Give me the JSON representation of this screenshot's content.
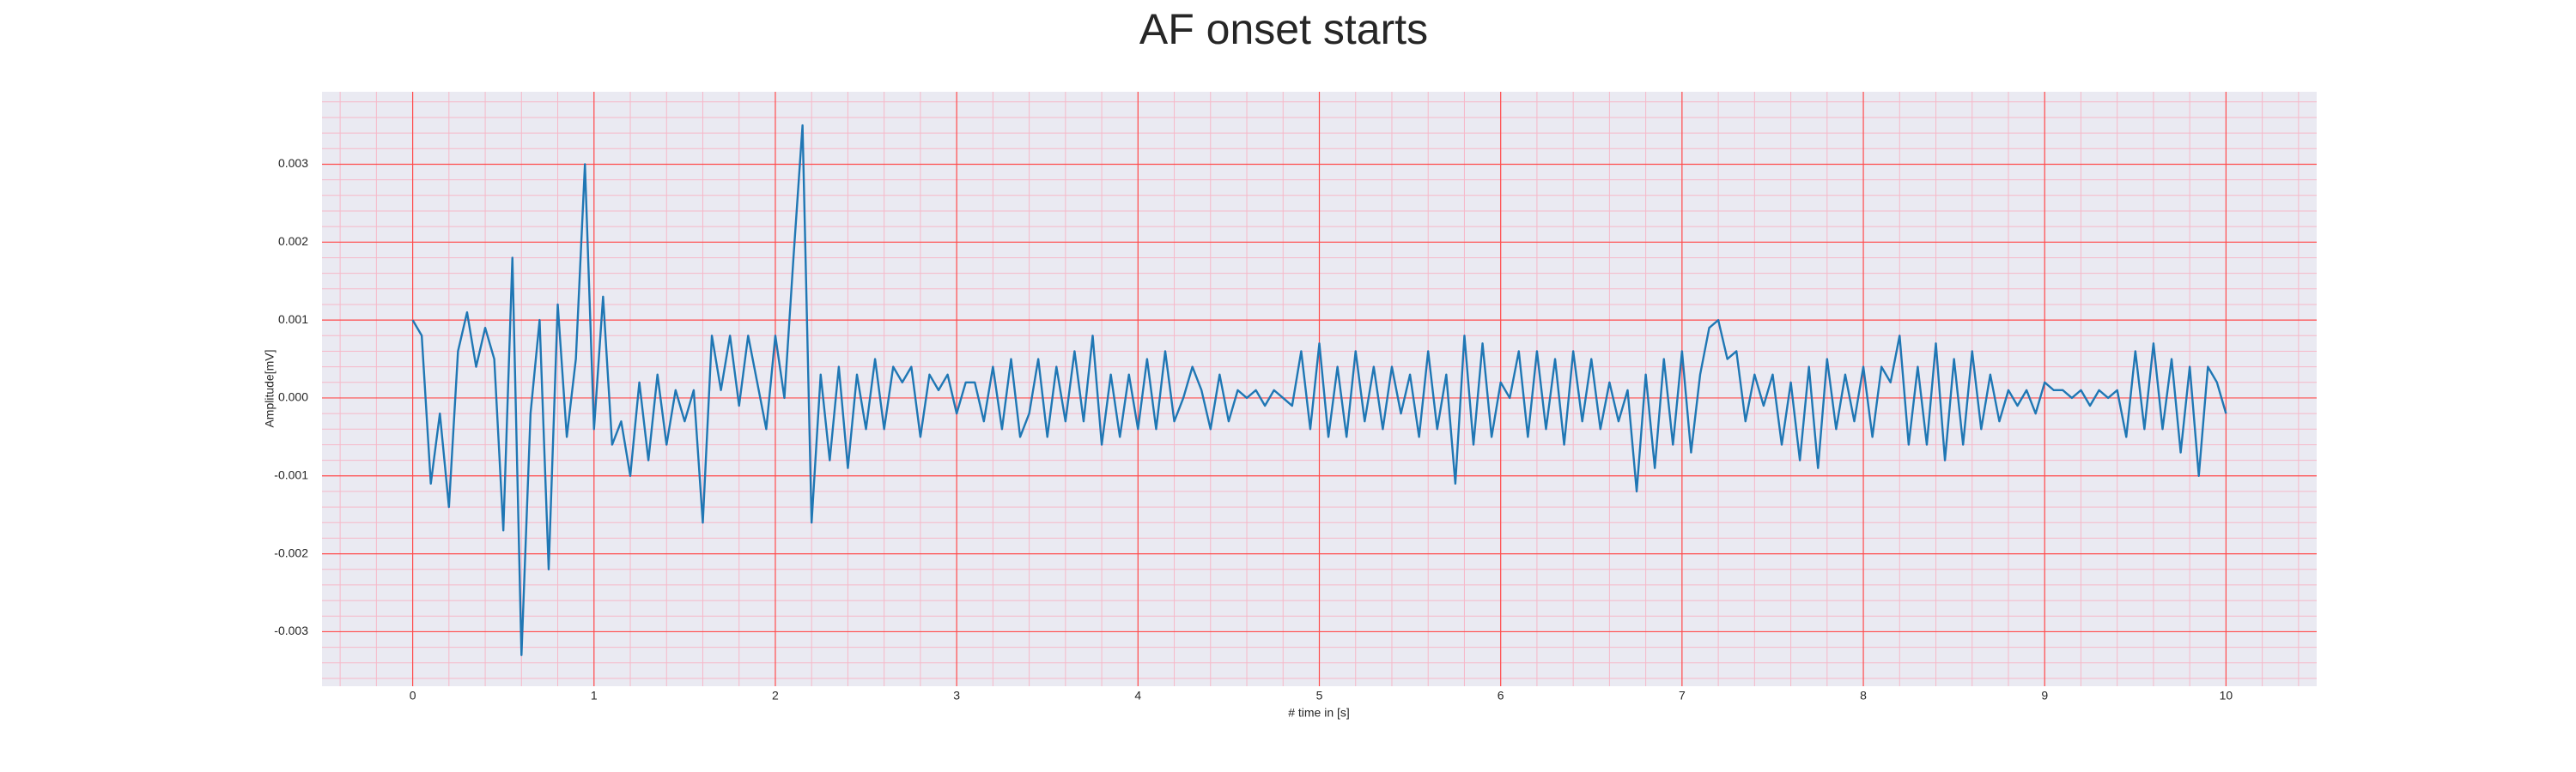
{
  "chart_data": {
    "type": "line",
    "title": "AF onset starts",
    "xlabel": "# time in [s]",
    "ylabel": "Amplitude[mV]",
    "color": "#1f77b4",
    "grid": true,
    "grid_color": "#ff4d4d",
    "minor_grid": true,
    "minor_grid_color": "#f6b8c8",
    "background": "#eaeaf2",
    "xlim": [
      -0.5,
      10.5
    ],
    "xticks": [
      0,
      1,
      2,
      3,
      4,
      5,
      6,
      7,
      8,
      9,
      10
    ],
    "ylim": [
      -0.0037,
      0.00393
    ],
    "yticks": [
      -0.003,
      -0.002,
      -0.001,
      {
        "value": 0,
        "label": "0.000"
      },
      0.001,
      0.002,
      0.003
    ],
    "x": [
      0,
      0.05,
      0.1,
      0.15,
      0.2,
      0.25,
      0.3,
      0.35,
      0.4,
      0.45,
      0.5,
      0.55,
      0.6,
      0.65,
      0.7,
      0.75,
      0.8,
      0.85,
      0.9,
      0.95,
      1,
      1.05,
      1.1,
      1.15,
      1.2,
      1.25,
      1.3,
      1.35,
      1.4,
      1.45,
      1.5,
      1.55,
      1.6,
      1.65,
      1.7,
      1.75,
      1.8,
      1.85,
      1.9,
      1.95,
      2,
      2.05,
      2.1,
      2.15,
      2.2,
      2.25,
      2.3,
      2.35,
      2.4,
      2.45,
      2.5,
      2.55,
      2.6,
      2.65,
      2.7,
      2.75,
      2.8,
      2.85,
      2.9,
      2.95,
      3,
      3.05,
      3.1,
      3.15,
      3.2,
      3.25,
      3.3,
      3.35,
      3.4,
      3.45,
      3.5,
      3.55,
      3.6,
      3.65,
      3.7,
      3.75,
      3.8,
      3.85,
      3.9,
      3.95,
      4,
      4.05,
      4.1,
      4.15,
      4.2,
      4.25,
      4.3,
      4.35,
      4.4,
      4.45,
      4.5,
      4.55,
      4.6,
      4.65,
      4.7,
      4.75,
      4.8,
      4.85,
      4.9,
      4.95,
      5,
      5.05,
      5.1,
      5.15,
      5.2,
      5.25,
      5.3,
      5.35,
      5.4,
      5.45,
      5.5,
      5.55,
      5.6,
      5.65,
      5.7,
      5.75,
      5.8,
      5.85,
      5.9,
      5.95,
      6,
      6.05,
      6.1,
      6.15,
      6.2,
      6.25,
      6.3,
      6.35,
      6.4,
      6.45,
      6.5,
      6.55,
      6.6,
      6.65,
      6.7,
      6.75,
      6.8,
      6.85,
      6.9,
      6.95,
      7,
      7.05,
      7.1,
      7.15,
      7.2,
      7.25,
      7.3,
      7.35,
      7.4,
      7.45,
      7.5,
      7.55,
      7.6,
      7.65,
      7.7,
      7.75,
      7.8,
      7.85,
      7.9,
      7.95,
      8,
      8.05,
      8.1,
      8.15,
      8.2,
      8.25,
      8.3,
      8.35,
      8.4,
      8.45,
      8.5,
      8.55,
      8.6,
      8.65,
      8.7,
      8.75,
      8.8,
      8.85,
      8.9,
      8.95,
      9,
      9.05,
      9.1,
      9.15,
      9.2,
      9.25,
      9.3,
      9.35,
      9.4,
      9.45,
      9.5,
      9.55,
      9.6,
      9.65,
      9.7,
      9.75,
      9.8,
      9.85,
      9.9,
      9.95,
      10
    ],
    "values": [
      0.001,
      0.0008,
      -0.0011,
      -0.0002,
      -0.0014,
      0.0006,
      0.0011,
      0.0004,
      0.0009,
      0.0005,
      -0.0017,
      0.0018,
      -0.0033,
      -0.0002,
      0.001,
      -0.0022,
      0.0012,
      -0.0005,
      0.0005,
      0.003,
      -0.0004,
      0.0013,
      -0.0006,
      -0.0003,
      -0.001,
      0.0002,
      -0.0008,
      0.0003,
      -0.0006,
      0.0001,
      -0.0003,
      0.0001,
      -0.0016,
      0.0008,
      0.0001,
      0.0008,
      -0.0001,
      0.0008,
      0.0002,
      -0.0004,
      0.0008,
      0,
      0.0018,
      0.0035,
      -0.0016,
      0.0003,
      -0.0008,
      0.0004,
      -0.0009,
      0.0003,
      -0.0004,
      0.0005,
      -0.0004,
      0.0004,
      0.0002,
      0.0004,
      -0.0005,
      0.0003,
      0.0001,
      0.0003,
      -0.0002,
      0.0002,
      0.0002,
      -0.0003,
      0.0004,
      -0.0004,
      0.0005,
      -0.0005,
      -0.0002,
      0.0005,
      -0.0005,
      0.0004,
      -0.0003,
      0.0006,
      -0.0003,
      0.0008,
      -0.0006,
      0.0003,
      -0.0005,
      0.0003,
      -0.0004,
      0.0005,
      -0.0004,
      0.0006,
      -0.0003,
      0,
      0.0004,
      0.0001,
      -0.0004,
      0.0003,
      -0.0003,
      0.0001,
      0,
      0.0001,
      -0.0001,
      0.0001,
      0,
      -0.0001,
      0.0006,
      -0.0004,
      0.0007,
      -0.0005,
      0.0004,
      -0.0005,
      0.0006,
      -0.0003,
      0.0004,
      -0.0004,
      0.0004,
      -0.0002,
      0.0003,
      -0.0005,
      0.0006,
      -0.0004,
      0.0003,
      -0.0011,
      0.0008,
      -0.0006,
      0.0007,
      -0.0005,
      0.0002,
      0,
      0.0006,
      -0.0005,
      0.0006,
      -0.0004,
      0.0005,
      -0.0006,
      0.0006,
      -0.0003,
      0.0005,
      -0.0004,
      0.0002,
      -0.0003,
      0.0001,
      -0.0012,
      0.0003,
      -0.0009,
      0.0005,
      -0.0006,
      0.0006,
      -0.0007,
      0.0003,
      0.0009,
      0.001,
      0.0005,
      0.0006,
      -0.0003,
      0.0003,
      -0.0001,
      0.0003,
      -0.0006,
      0.0002,
      -0.0008,
      0.0004,
      -0.0009,
      0.0005,
      -0.0004,
      0.0003,
      -0.0003,
      0.0004,
      -0.0005,
      0.0004,
      0.0002,
      0.0008,
      -0.0006,
      0.0004,
      -0.0006,
      0.0007,
      -0.0008,
      0.0005,
      -0.0006,
      0.0006,
      -0.0004,
      0.0003,
      -0.0003,
      0.0001,
      -0.0001,
      0.0001,
      -0.0002,
      0.0002,
      0.0001,
      0.0001,
      0,
      0.0001,
      -0.0001,
      0.0001,
      0,
      0.0001,
      -0.0005,
      0.0006,
      -0.0004,
      0.0007,
      -0.0004,
      0.0005,
      -0.0007,
      0.0004,
      -0.001,
      0.0004,
      0.0002,
      -0.0002
    ]
  }
}
